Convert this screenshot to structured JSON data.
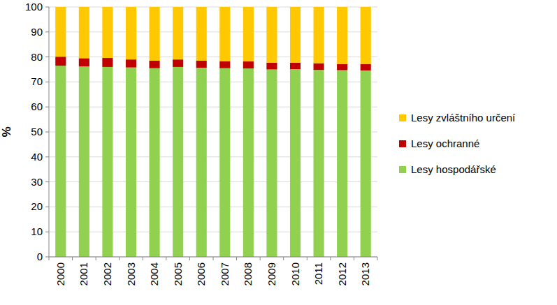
{
  "chart_data": {
    "type": "bar",
    "stacked": true,
    "grid": true,
    "legend": "right",
    "y_label": "%",
    "categories": [
      "2000",
      "2001",
      "2002",
      "2003",
      "2004",
      "2005",
      "2006",
      "2007",
      "2008",
      "2009",
      "2010",
      "2011",
      "2012",
      "2013"
    ],
    "series": [
      {
        "name": "Lesy hospodářské",
        "color": "#92d050",
        "values": [
          76.5,
          76.2,
          76.0,
          75.8,
          75.5,
          76.0,
          75.7,
          75.5,
          75.4,
          75.0,
          75.1,
          74.8,
          74.7,
          74.6
        ]
      },
      {
        "name": "Lesy ochranné",
        "color": "#c00000",
        "values": [
          3.6,
          3.3,
          3.6,
          3.2,
          3.0,
          3.0,
          2.8,
          2.8,
          2.8,
          2.7,
          2.6,
          2.7,
          2.4,
          2.5
        ]
      },
      {
        "name": "Lesy zvláštního určení",
        "color": "#ffc800",
        "values": [
          19.9,
          20.5,
          20.4,
          21.0,
          21.5,
          21.0,
          21.5,
          21.7,
          21.8,
          22.3,
          22.3,
          22.5,
          22.9,
          22.9
        ]
      }
    ],
    "ylim": [
      0,
      100
    ],
    "yticks": [
      0,
      10,
      20,
      30,
      40,
      50,
      60,
      70,
      80,
      90,
      100
    ]
  }
}
